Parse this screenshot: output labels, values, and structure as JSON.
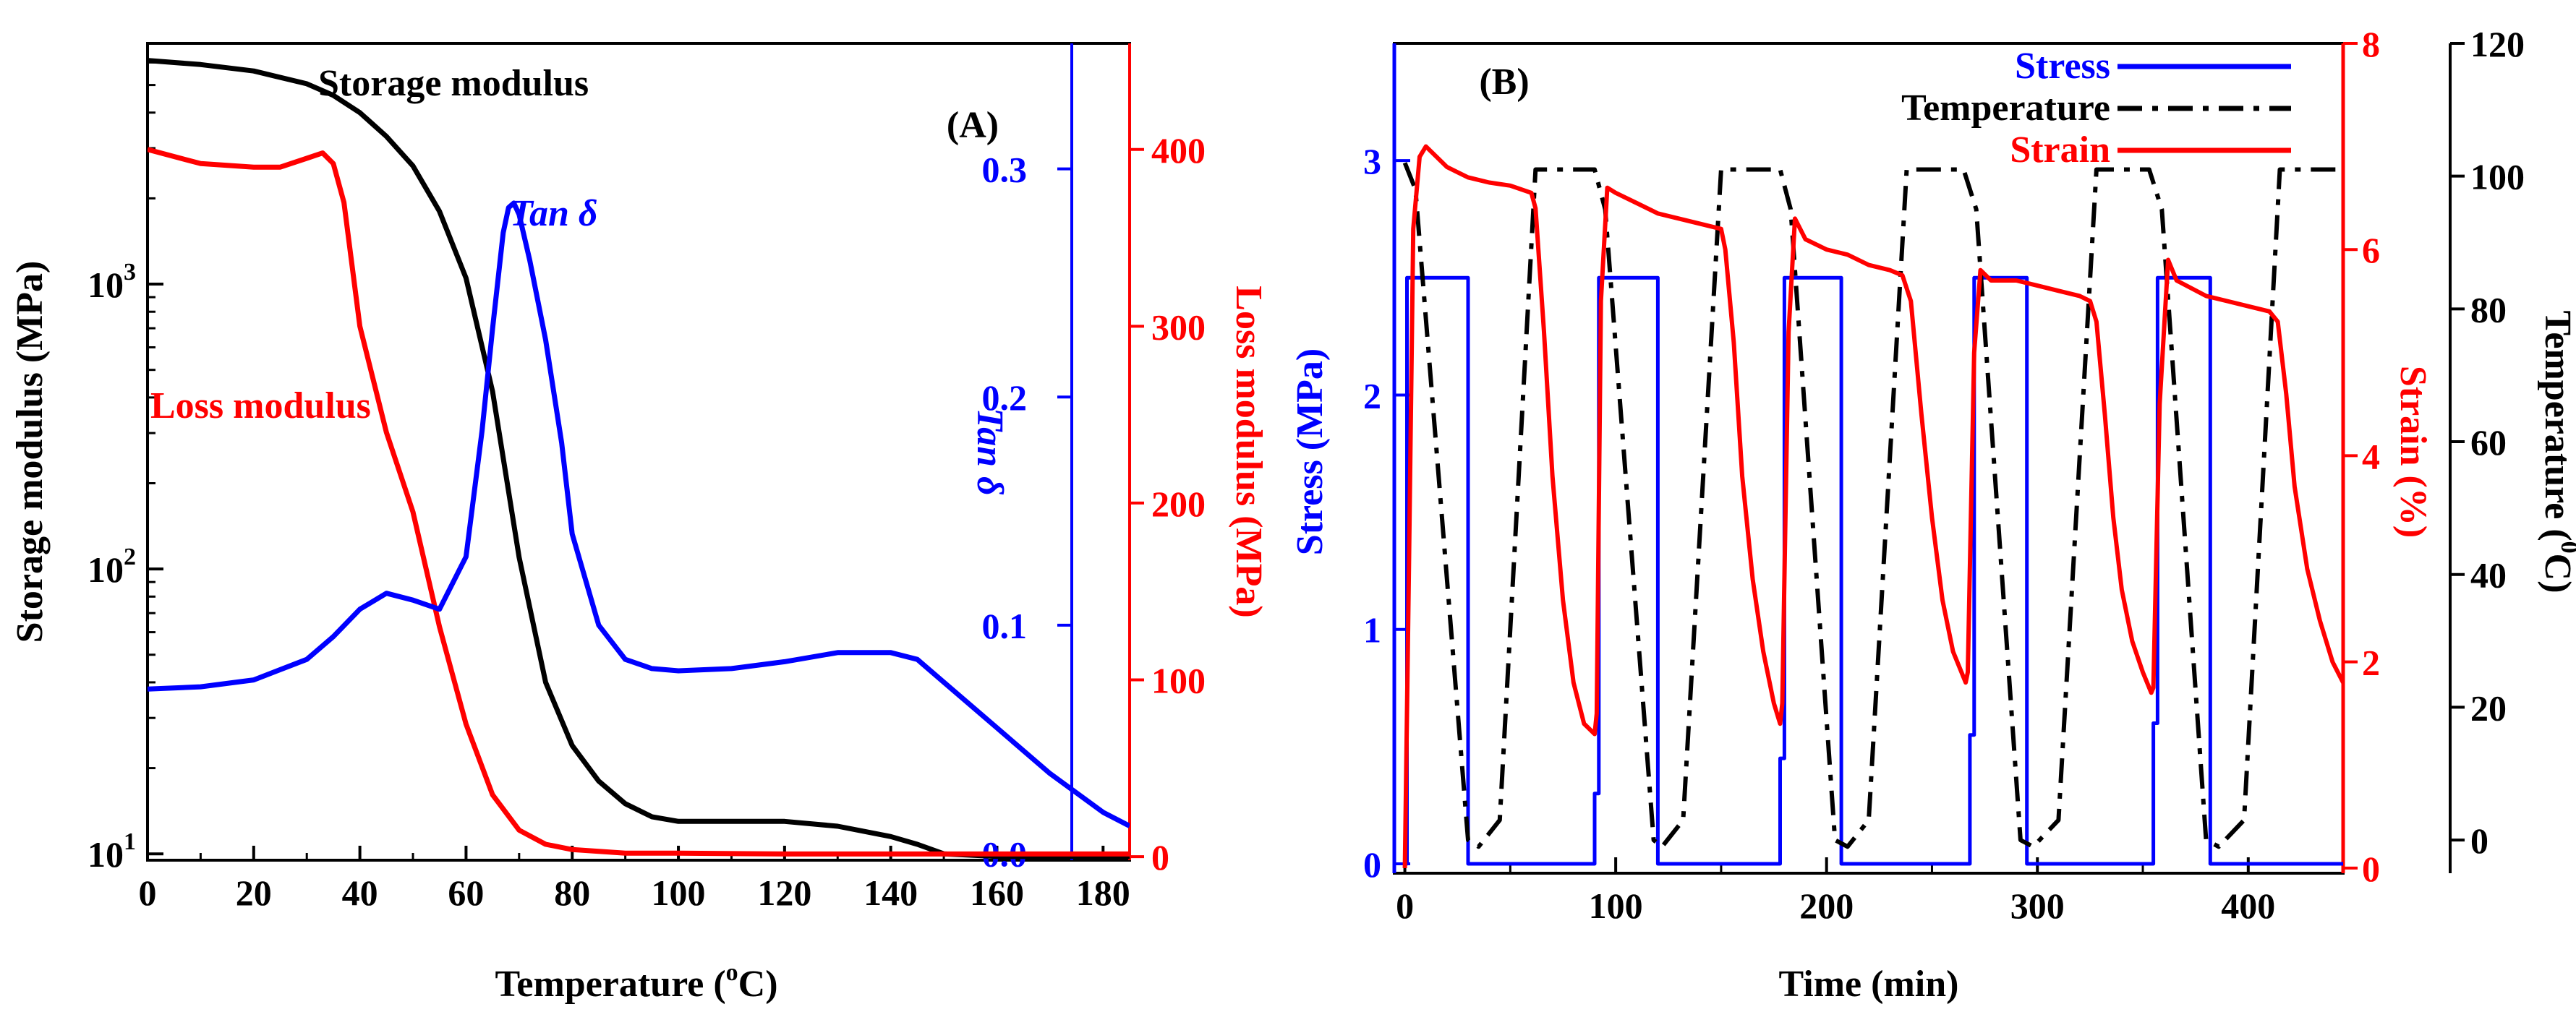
{
  "figure": "Dynamic mechanical analysis and shape-memory cycle plots",
  "chart_data": [
    {
      "panel": "(A)",
      "type": "line",
      "xlabel_main": "Temperature (",
      "xlabel_sup": "o",
      "xlabel_end": "C)",
      "x_ticks": [
        "0",
        "20",
        "40",
        "60",
        "80",
        "100",
        "120",
        "140",
        "160",
        "180"
      ],
      "xlim": [
        0,
        185
      ],
      "axes": {
        "storage": {
          "label": "Storage modulus (MPa)",
          "scale": "log",
          "ylim": [
            9.5,
            7000
          ],
          "color": "#000000",
          "ticks": [
            {
              "base": "10",
              "exp": "1",
              "value": 10
            },
            {
              "base": "10",
              "exp": "2",
              "value": 100
            },
            {
              "base": "10",
              "exp": "3",
              "value": 1000
            }
          ]
        },
        "tan": {
          "label": "Tan δ",
          "ylim": [
            -0.003,
            0.355
          ],
          "color": "#0000ff",
          "ticks": [
            "0.0",
            "0.1",
            "0.2",
            "0.3"
          ]
        },
        "loss": {
          "label": "Loss modulus (MPa)",
          "ylim": [
            -2,
            460
          ],
          "color": "#ff0000",
          "ticks": [
            "0",
            "100",
            "200",
            "300",
            "400"
          ]
        }
      },
      "annotations": {
        "storage": "Storage modulus",
        "loss": "Loss modulus",
        "tan": "Tan δ"
      },
      "series": [
        {
          "name": "Storage modulus",
          "axis": "storage",
          "color": "#000000",
          "x": [
            0,
            10,
            20,
            30,
            35,
            40,
            45,
            50,
            55,
            60,
            65,
            70,
            75,
            80,
            85,
            90,
            95,
            100,
            110,
            120,
            130,
            140,
            145,
            150,
            160,
            170,
            185
          ],
          "y": [
            6100,
            5900,
            5600,
            5050,
            4600,
            4000,
            3300,
            2600,
            1800,
            1050,
            420,
            110,
            40,
            24,
            18,
            15,
            13.5,
            13,
            13,
            13,
            12.5,
            11.5,
            10.8,
            10,
            9.8,
            9.8,
            9.8
          ]
        },
        {
          "name": "Loss modulus",
          "axis": "loss",
          "color": "#ff0000",
          "x": [
            0,
            10,
            20,
            25,
            30,
            33,
            35,
            37,
            40,
            45,
            50,
            55,
            60,
            65,
            70,
            75,
            80,
            90,
            100,
            120,
            140,
            160,
            185
          ],
          "y": [
            400,
            392,
            390,
            390,
            395,
            398,
            392,
            370,
            300,
            240,
            195,
            130,
            75,
            35,
            15,
            7,
            4,
            2,
            2,
            1.5,
            1.5,
            1.5,
            1.5
          ]
        },
        {
          "name": "Tan δ",
          "axis": "tan",
          "color": "#0000ff",
          "x": [
            0,
            10,
            20,
            30,
            35,
            40,
            45,
            50,
            55,
            60,
            63,
            65,
            67,
            68,
            69,
            70,
            72,
            75,
            78,
            80,
            85,
            90,
            95,
            100,
            110,
            120,
            130,
            140,
            145,
            150,
            160,
            170,
            180,
            185
          ],
          "y": [
            0.072,
            0.073,
            0.076,
            0.085,
            0.095,
            0.107,
            0.114,
            0.111,
            0.107,
            0.13,
            0.185,
            0.23,
            0.272,
            0.283,
            0.285,
            0.28,
            0.26,
            0.225,
            0.18,
            0.14,
            0.1,
            0.085,
            0.081,
            0.08,
            0.081,
            0.084,
            0.088,
            0.088,
            0.085,
            0.075,
            0.055,
            0.035,
            0.018,
            0.012
          ]
        }
      ]
    },
    {
      "panel": "(B)",
      "type": "line",
      "xlabel": "Time (min)",
      "x_ticks": [
        "0",
        "100",
        "200",
        "300",
        "400"
      ],
      "xlim": [
        -5,
        445
      ],
      "axes": {
        "stress": {
          "label": "Stress (MPa)",
          "ylim": [
            -0.04,
            3.5
          ],
          "color": "#0000ff",
          "ticks": [
            "0",
            "1",
            "2",
            "3"
          ]
        },
        "strain": {
          "label": "Strain (%)",
          "ylim": [
            -0.05,
            8.0
          ],
          "color": "#ff0000",
          "ticks": [
            "0",
            "2",
            "4",
            "6",
            "8"
          ]
        },
        "temperature": {
          "label_main": "Temperature (",
          "label_sup": "0",
          "label_end": "C)",
          "ylim": [
            -5,
            120
          ],
          "color": "#000000",
          "ticks": [
            "0",
            "20",
            "40",
            "60",
            "80",
            "100",
            "120"
          ]
        }
      },
      "legend": [
        {
          "label": "Stress",
          "color": "#0000ff",
          "dash": "solid"
        },
        {
          "label": "Temperature",
          "color": "#000000",
          "dash": "dashdot"
        },
        {
          "label": "Strain",
          "color": "#ff0000",
          "dash": "solid"
        }
      ],
      "series": [
        {
          "name": "Stress",
          "axis": "stress",
          "color": "#0000ff",
          "x": [
            0,
            1,
            1,
            30,
            30,
            90,
            90,
            92,
            92,
            120,
            120,
            178,
            178,
            180,
            180,
            207,
            207,
            268,
            268,
            270,
            270,
            295,
            295,
            355,
            355,
            357,
            357,
            382,
            382,
            445
          ],
          "y": [
            0,
            0,
            2.5,
            2.5,
            0,
            0,
            0.3,
            0.3,
            2.5,
            2.5,
            0,
            0,
            0.45,
            0.45,
            2.5,
            2.5,
            0,
            0,
            0.55,
            0.55,
            2.5,
            2.5,
            0,
            0,
            0.6,
            0.6,
            2.5,
            2.5,
            0,
            0
          ]
        },
        {
          "name": "Temperature",
          "axis": "temperature",
          "color": "#000000",
          "x": [
            0,
            5,
            30,
            35,
            45,
            62,
            90,
            95,
            118,
            122,
            132,
            150,
            178,
            183,
            204,
            210,
            220,
            238,
            265,
            271,
            292,
            298,
            310,
            328,
            353,
            359,
            380,
            386,
            398,
            415,
            445
          ],
          "y": [
            102,
            98,
            0,
            -1,
            3,
            101,
            101,
            95,
            0,
            -1,
            3,
            101,
            101,
            95,
            0,
            -1,
            3,
            101,
            101,
            95,
            0,
            -1,
            3,
            101,
            101,
            95,
            0,
            -1,
            3,
            101,
            101
          ]
        },
        {
          "name": "Strain",
          "axis": "strain",
          "color": "#ff0000",
          "x": [
            0,
            2,
            4,
            7,
            10,
            15,
            20,
            25,
            30,
            40,
            50,
            60,
            62,
            66,
            70,
            75,
            80,
            85,
            90,
            91,
            93,
            96,
            100,
            110,
            120,
            130,
            140,
            150,
            152,
            156,
            160,
            165,
            170,
            175,
            178,
            179,
            182,
            185,
            190,
            200,
            210,
            220,
            230,
            236,
            240,
            245,
            250,
            255,
            260,
            266,
            267,
            270,
            273,
            278,
            290,
            300,
            310,
            320,
            325,
            328,
            332,
            336,
            340,
            345,
            350,
            354,
            355,
            358,
            362,
            366,
            380,
            390,
            400,
            410,
            414,
            418,
            422,
            428,
            434,
            440,
            445
          ],
          "y": [
            0,
            3,
            6.2,
            6.9,
            7.0,
            6.9,
            6.8,
            6.75,
            6.7,
            6.65,
            6.62,
            6.55,
            6.4,
            5.2,
            3.8,
            2.6,
            1.8,
            1.4,
            1.3,
            1.5,
            5.5,
            6.6,
            6.55,
            6.45,
            6.35,
            6.3,
            6.25,
            6.2,
            6.0,
            5.1,
            3.8,
            2.8,
            2.1,
            1.6,
            1.4,
            1.6,
            5.2,
            6.3,
            6.1,
            6.0,
            5.95,
            5.85,
            5.8,
            5.75,
            5.5,
            4.4,
            3.4,
            2.6,
            2.1,
            1.8,
            1.9,
            5.0,
            5.8,
            5.7,
            5.7,
            5.65,
            5.6,
            5.55,
            5.5,
            5.3,
            4.4,
            3.4,
            2.7,
            2.2,
            1.9,
            1.7,
            1.75,
            4.5,
            5.9,
            5.7,
            5.55,
            5.5,
            5.45,
            5.4,
            5.3,
            4.6,
            3.7,
            2.9,
            2.4,
            2.0,
            1.8
          ]
        }
      ]
    }
  ]
}
